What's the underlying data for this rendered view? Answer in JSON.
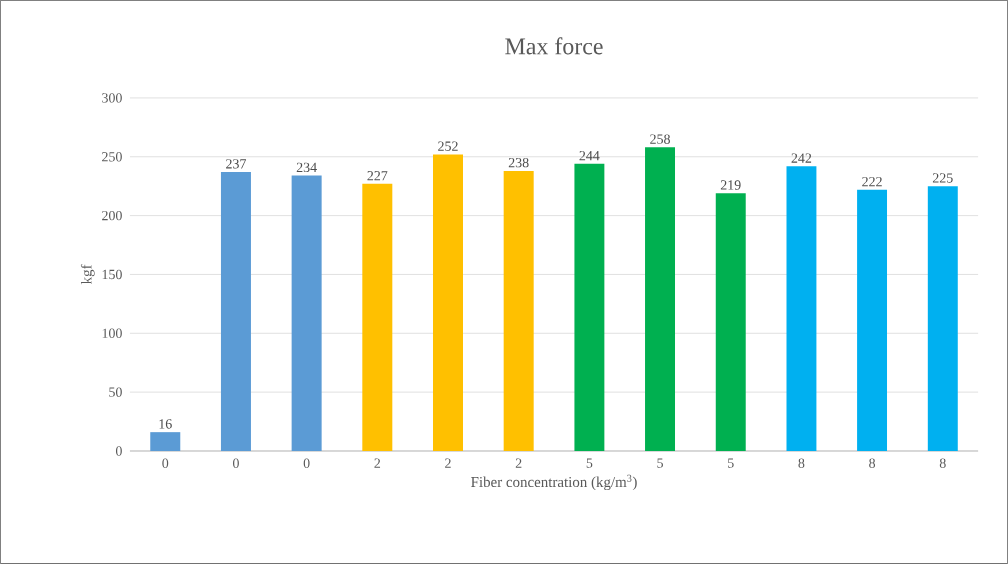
{
  "chart_data": {
    "type": "bar",
    "title": "Max force",
    "xlabel": "Fiber concentration (kg/m$^{3}$)",
    "ylabel": "kgf",
    "categories": [
      "0",
      "0",
      "0",
      "2",
      "2",
      "2",
      "5",
      "5",
      "5",
      "8",
      "8",
      "8"
    ],
    "values": [
      16,
      237,
      234,
      227,
      252,
      238,
      244,
      258,
      219,
      242,
      222,
      225
    ],
    "colors": [
      "#5b9bd5",
      "#5b9bd5",
      "#5b9bd5",
      "#ffc000",
      "#ffc000",
      "#ffc000",
      "#00b050",
      "#00b050",
      "#00b050",
      "#00b0f0",
      "#00b0f0",
      "#00b0f0"
    ],
    "ylim": [
      0,
      300
    ],
    "yticks": [
      0,
      50,
      100,
      150,
      200,
      250,
      300
    ],
    "grid": "y",
    "data_labels": true
  }
}
